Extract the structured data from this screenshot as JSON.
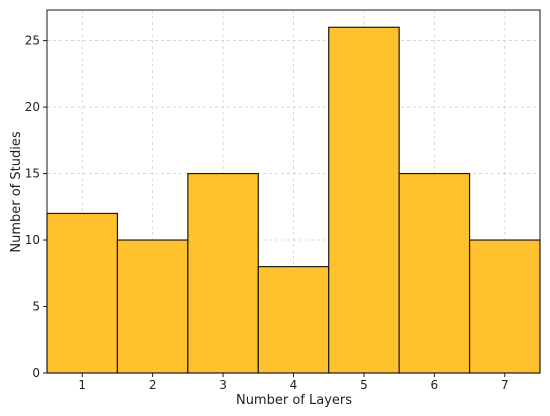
{
  "chart_data": {
    "type": "bar",
    "categories": [
      1,
      2,
      3,
      4,
      5,
      6,
      7
    ],
    "values": [
      12,
      10,
      15,
      8,
      26,
      15,
      10
    ],
    "xlabel": "Number of Layers",
    "ylabel": "Number of Studies",
    "xlim": [
      0.5,
      7.5
    ],
    "ylim": [
      0,
      27.3
    ],
    "yticks": [
      0,
      5,
      10,
      15,
      20,
      25
    ],
    "xticks": [
      1,
      2,
      3,
      4,
      5,
      6,
      7
    ],
    "grid": true,
    "bar_color": "#FFC12E",
    "bar_edge_color": "#1a1a1a",
    "grid_color": "#d0d0d0"
  }
}
